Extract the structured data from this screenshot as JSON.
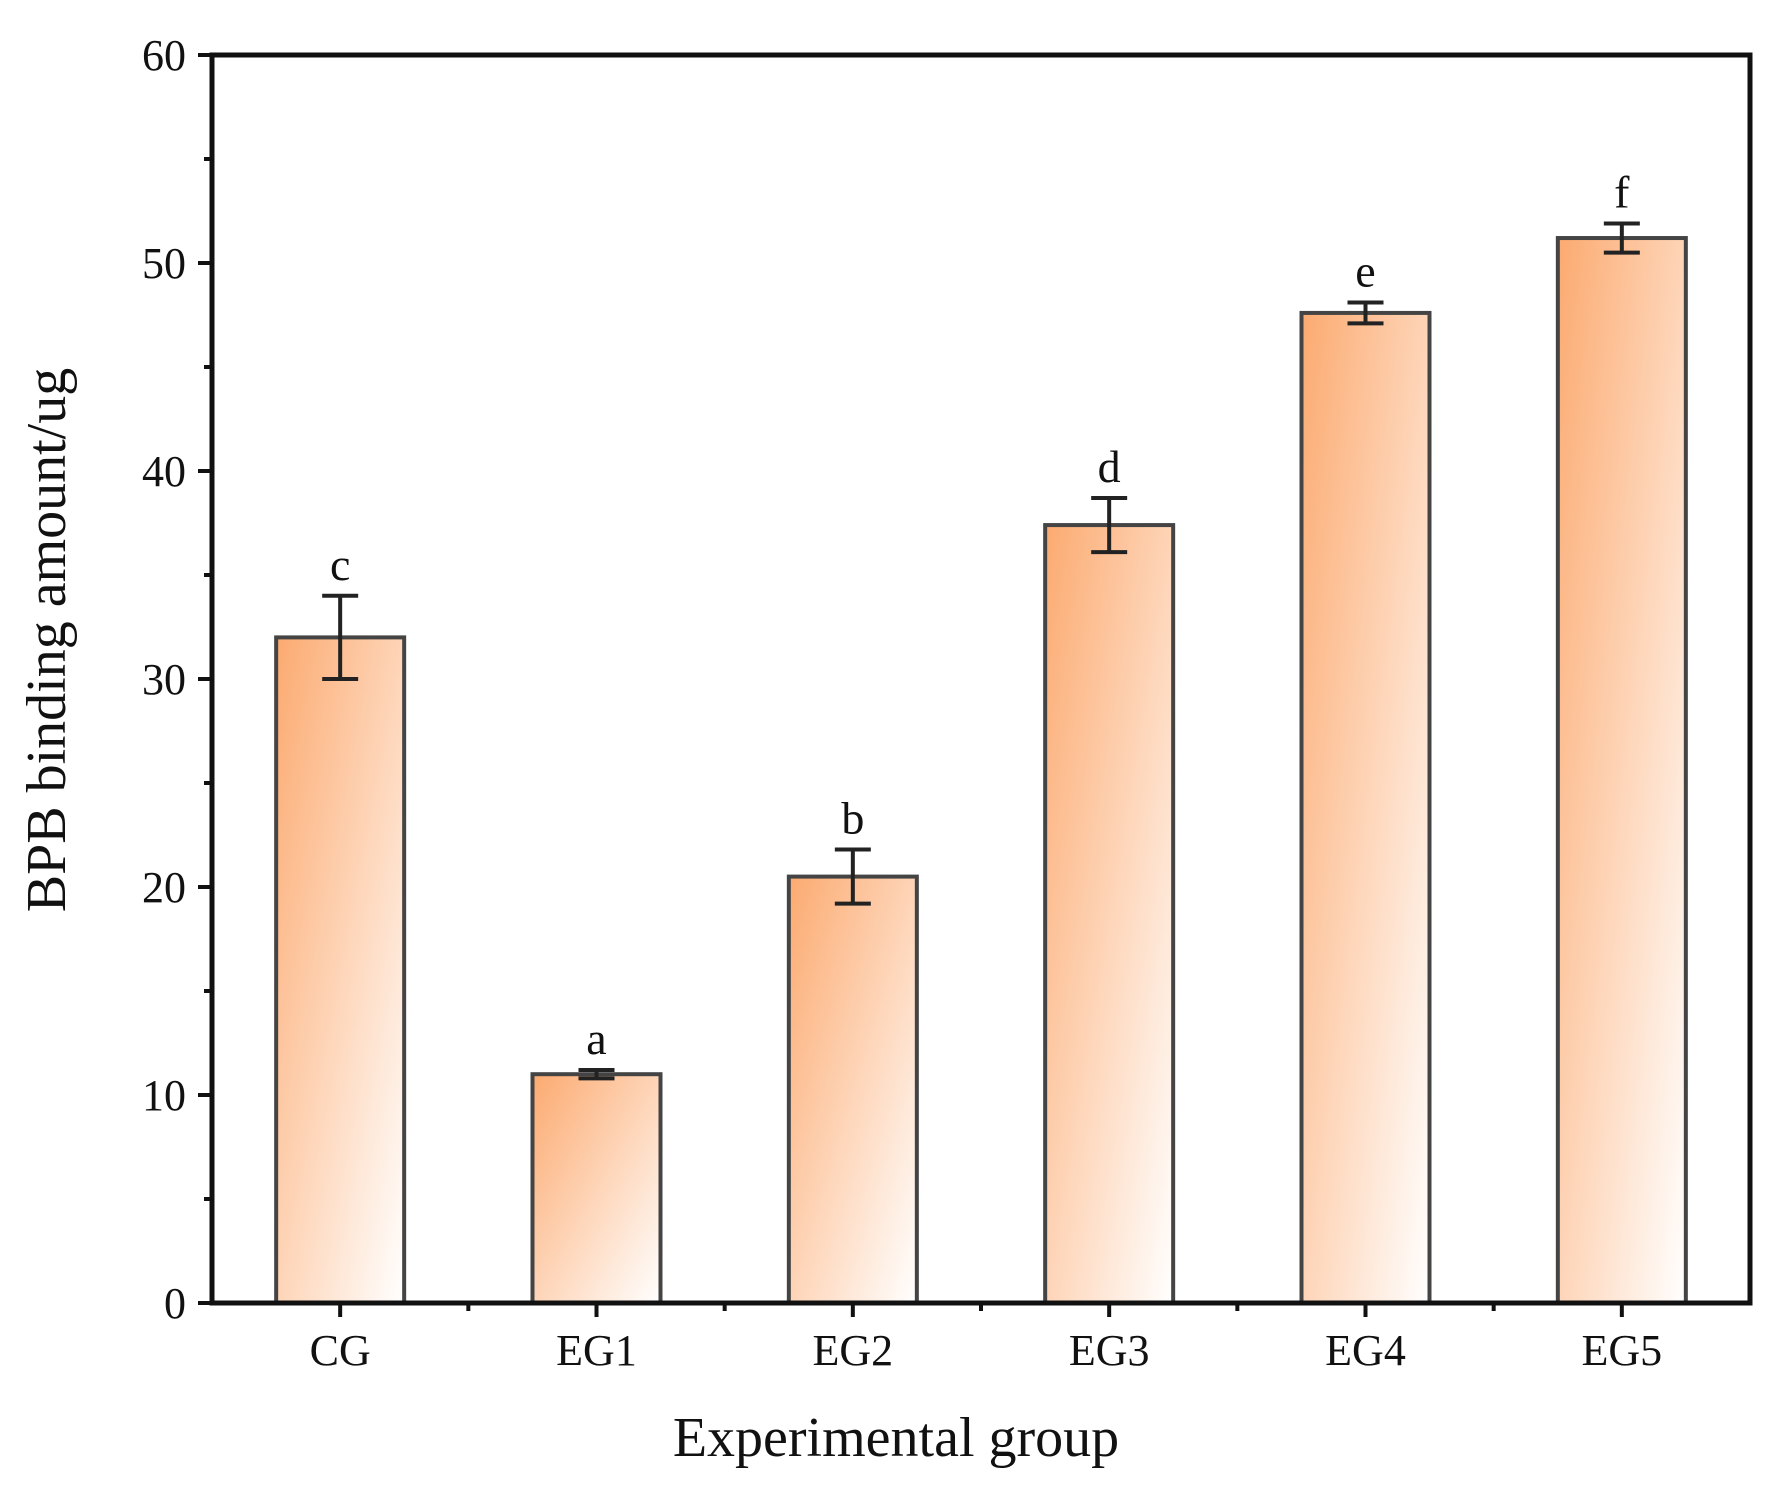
{
  "chart_data": {
    "type": "bar",
    "xlabel": "Experimental group",
    "ylabel": "BPB binding amount/ug",
    "ylim": [
      0,
      60
    ],
    "yticks": [
      0,
      10,
      20,
      30,
      40,
      50,
      60
    ],
    "categories": [
      "CG",
      "EG1",
      "EG2",
      "EG3",
      "EG4",
      "EG5"
    ],
    "values": [
      32.0,
      11.0,
      20.5,
      37.4,
      47.6,
      51.2
    ],
    "errors": [
      2.0,
      0.2,
      1.3,
      1.3,
      0.5,
      0.7
    ],
    "significance_letters": [
      "c",
      "a",
      "b",
      "d",
      "e",
      "f"
    ],
    "grid": false,
    "colors": {
      "bar_gradient_start": "#fcaa70",
      "bar_gradient_end": "#ffffff",
      "bar_outline": "#444444",
      "axis": "#111111"
    }
  }
}
